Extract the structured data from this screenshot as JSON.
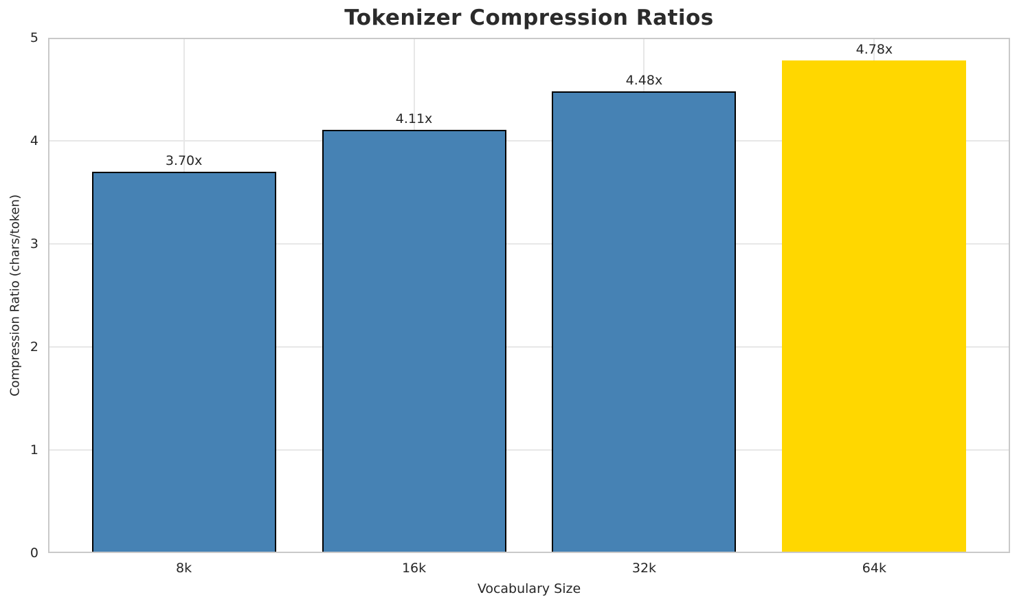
{
  "chart_data": {
    "type": "bar",
    "title": "Tokenizer Compression Ratios",
    "xlabel": "Vocabulary Size",
    "ylabel": "Compression Ratio (chars/token)",
    "categories": [
      "8k",
      "16k",
      "32k",
      "64k"
    ],
    "values": [
      3.7,
      4.11,
      4.48,
      4.78
    ],
    "bar_labels": [
      "3.70x",
      "4.11x",
      "4.48x",
      "4.78x"
    ],
    "bar_colors": [
      "#4682B4",
      "#4682B4",
      "#4682B4",
      "#FFD700"
    ],
    "bar_edge_colors": [
      "#000000",
      "#000000",
      "#000000",
      "none"
    ],
    "ylim": [
      0,
      5
    ],
    "yticks": [
      0,
      1,
      2,
      3,
      4,
      5
    ],
    "grid": true,
    "legend": "none",
    "colors": {
      "default_bar": "#4682B4",
      "highlight_bar": "#FFD700",
      "bar_edge": "#000000",
      "grid": "#e7e7e7",
      "spine": "#c9c9c9",
      "text": "#262626"
    }
  }
}
